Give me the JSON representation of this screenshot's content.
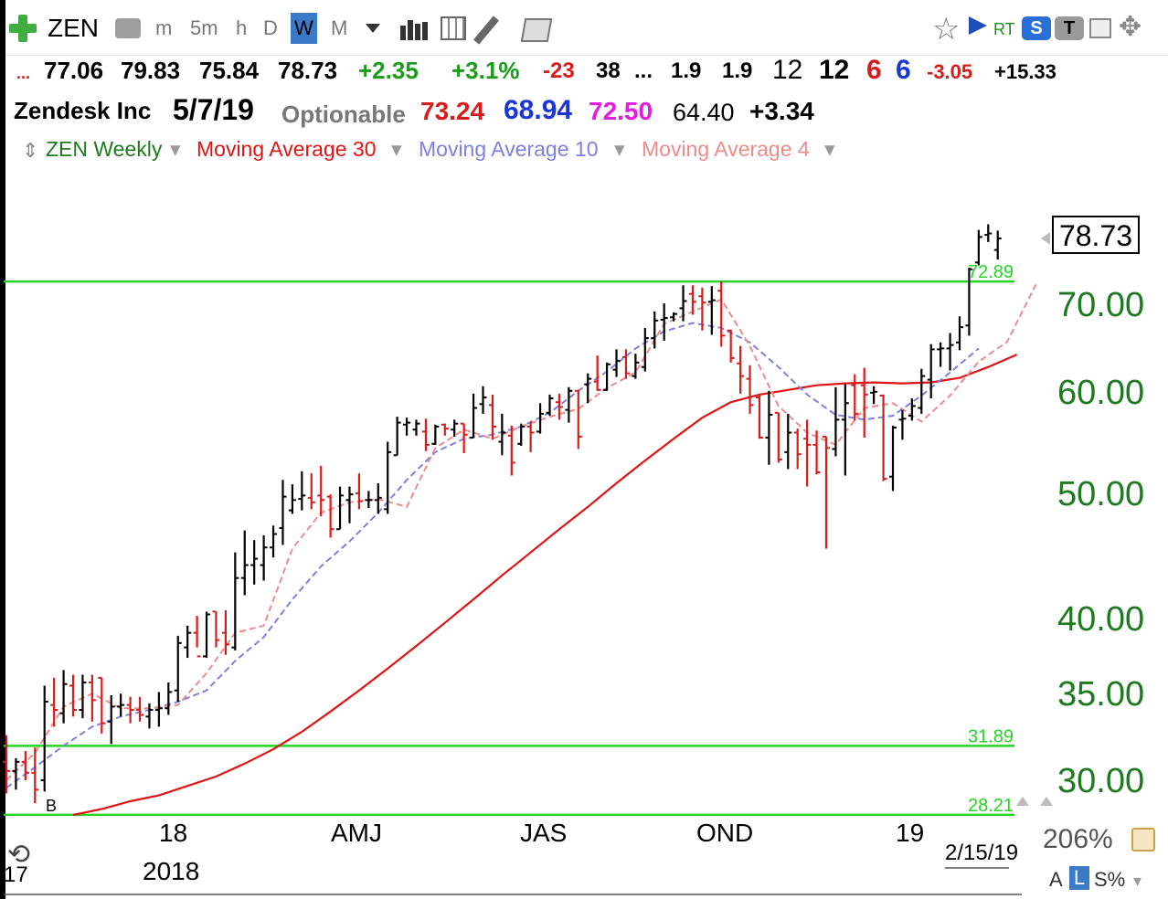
{
  "toolbar": {
    "symbol": "ZEN",
    "intervals": [
      "m",
      "5m",
      "h",
      "D",
      "W",
      "M"
    ],
    "active_interval": "W",
    "rt_label": "RT"
  },
  "quote": {
    "open": "77.06",
    "high": "79.83",
    "low": "75.84",
    "close": "78.73",
    "change": "+2.35",
    "change_pct": "+3.1%",
    "val1": "-23",
    "val2": "38",
    "dots": "...",
    "val3": "1.9",
    "val4": "1.9",
    "val5": "12",
    "val6": "12",
    "val7": "6",
    "val8": "6",
    "val9": "-3.05",
    "val10": "+15.33",
    "company": "Zendesk Inc",
    "date": "5/7/19",
    "optionable": "Optionable",
    "ma30": "73.24",
    "ma10": "68.94",
    "ma4": "72.50",
    "val11": "64.40",
    "val12": "+3.34"
  },
  "legend": {
    "main": "ZEN Weekly",
    "ma30": "Moving Average 30",
    "ma10": "Moving Average 10",
    "ma4": "Moving Average 4"
  },
  "colors": {
    "up": "#000000",
    "down": "#d81b1b",
    "ma30": "#e01414",
    "ma10": "#7f7fe0",
    "ma4": "#ea8c8c",
    "hline": "#25d425",
    "axis_text": "#1e7a1e"
  },
  "chart_data": {
    "type": "bar",
    "title": "ZEN Weekly",
    "scale": "log",
    "ylim": [
      28,
      82
    ],
    "y_ticks": [
      "30.00",
      "35.00",
      "40.00",
      "50.00",
      "60.00",
      "70.00"
    ],
    "x_labels": [
      "17",
      "18",
      "AMJ",
      "JAS",
      "OND",
      "19"
    ],
    "year_label": "2018",
    "last_date": "2/15/19",
    "last_price_label": "78.73",
    "percent_label": "206%",
    "footer_buttons": [
      "A",
      "L",
      "S%"
    ],
    "hlines": [
      {
        "value": 72.89,
        "label": "72.89"
      },
      {
        "value": 31.89,
        "label": "31.89"
      },
      {
        "value": 28.21,
        "label": "28.21"
      }
    ],
    "marker": "B",
    "bars": [
      {
        "o": 31.0,
        "h": 32.5,
        "l": 29.3,
        "c": 30.5
      },
      {
        "o": 30.5,
        "h": 31.2,
        "l": 29.5,
        "c": 31.0
      },
      {
        "o": 31.0,
        "h": 31.6,
        "l": 30.0,
        "c": 30.4
      },
      {
        "o": 30.4,
        "h": 31.8,
        "l": 28.8,
        "c": 29.5
      },
      {
        "o": 30.0,
        "h": 35.5,
        "l": 29.4,
        "c": 34.5
      },
      {
        "o": 34.3,
        "h": 36.0,
        "l": 33.0,
        "c": 34.0
      },
      {
        "o": 33.8,
        "h": 36.5,
        "l": 33.2,
        "c": 35.6
      },
      {
        "o": 35.5,
        "h": 36.2,
        "l": 33.6,
        "c": 34.0
      },
      {
        "o": 34.0,
        "h": 36.2,
        "l": 33.5,
        "c": 35.7
      },
      {
        "o": 35.7,
        "h": 36.2,
        "l": 33.3,
        "c": 34.6
      },
      {
        "o": 36.0,
        "h": 36.0,
        "l": 32.6,
        "c": 33.2
      },
      {
        "o": 33.3,
        "h": 34.9,
        "l": 32.0,
        "c": 34.2
      },
      {
        "o": 34.2,
        "h": 35.0,
        "l": 33.6,
        "c": 34.3
      },
      {
        "o": 34.3,
        "h": 34.8,
        "l": 33.2,
        "c": 34.0
      },
      {
        "o": 34.0,
        "h": 34.8,
        "l": 33.3,
        "c": 33.7
      },
      {
        "o": 33.6,
        "h": 34.4,
        "l": 32.9,
        "c": 34.0
      },
      {
        "o": 34.0,
        "h": 35.1,
        "l": 33.0,
        "c": 34.1
      },
      {
        "o": 34.1,
        "h": 35.7,
        "l": 33.7,
        "c": 35.1
      },
      {
        "o": 35.2,
        "h": 38.8,
        "l": 34.5,
        "c": 38.3
      },
      {
        "o": 38.0,
        "h": 39.5,
        "l": 37.3,
        "c": 39.0
      },
      {
        "o": 39.0,
        "h": 40.2,
        "l": 38.0,
        "c": 37.4
      },
      {
        "o": 37.4,
        "h": 40.5,
        "l": 37.3,
        "c": 40.3
      },
      {
        "o": 40.5,
        "h": 40.5,
        "l": 38.0,
        "c": 38.5
      },
      {
        "o": 39.0,
        "h": 40.6,
        "l": 37.5,
        "c": 38.2
      },
      {
        "o": 38.0,
        "h": 45.0,
        "l": 37.8,
        "c": 43.0
      },
      {
        "o": 43.0,
        "h": 46.8,
        "l": 41.7,
        "c": 44.0
      },
      {
        "o": 44.0,
        "h": 46.0,
        "l": 42.5,
        "c": 44.5
      },
      {
        "o": 44.0,
        "h": 46.4,
        "l": 42.8,
        "c": 45.4
      },
      {
        "o": 45.4,
        "h": 47.2,
        "l": 44.6,
        "c": 46.5
      },
      {
        "o": 47.0,
        "h": 51.2,
        "l": 45.6,
        "c": 49.7
      },
      {
        "o": 48.5,
        "h": 50.8,
        "l": 48.2,
        "c": 49.4
      },
      {
        "o": 49.5,
        "h": 52.0,
        "l": 48.5,
        "c": 49.8
      },
      {
        "o": 49.6,
        "h": 51.8,
        "l": 48.6,
        "c": 49.2
      },
      {
        "o": 49.8,
        "h": 52.5,
        "l": 48.0,
        "c": 49.4
      },
      {
        "o": 49.7,
        "h": 49.9,
        "l": 46.2,
        "c": 46.9
      },
      {
        "o": 46.9,
        "h": 50.6,
        "l": 46.9,
        "c": 49.8
      },
      {
        "o": 49.4,
        "h": 50.6,
        "l": 47.4,
        "c": 49.9
      },
      {
        "o": 50.0,
        "h": 51.8,
        "l": 48.6,
        "c": 49.3
      },
      {
        "o": 49.4,
        "h": 50.2,
        "l": 48.7,
        "c": 49.4
      },
      {
        "o": 49.4,
        "h": 50.9,
        "l": 48.2,
        "c": 49.6
      },
      {
        "o": 48.6,
        "h": 54.8,
        "l": 48.2,
        "c": 53.8
      },
      {
        "o": 53.5,
        "h": 57.3,
        "l": 53.5,
        "c": 56.7
      },
      {
        "o": 56.5,
        "h": 57.2,
        "l": 55.4,
        "c": 56.7
      },
      {
        "o": 56.0,
        "h": 57.0,
        "l": 55.4,
        "c": 56.6
      },
      {
        "o": 55.8,
        "h": 57.1,
        "l": 53.9,
        "c": 54.5
      },
      {
        "o": 54.6,
        "h": 56.5,
        "l": 54.5,
        "c": 56.3
      },
      {
        "o": 56.5,
        "h": 56.6,
        "l": 55.4,
        "c": 56.1
      },
      {
        "o": 56.0,
        "h": 57.0,
        "l": 55.3,
        "c": 56.6
      },
      {
        "o": 56.6,
        "h": 56.6,
        "l": 53.7,
        "c": 55.5
      },
      {
        "o": 55.2,
        "h": 59.7,
        "l": 55.2,
        "c": 58.2
      },
      {
        "o": 58.6,
        "h": 60.5,
        "l": 57.6,
        "c": 59.3
      },
      {
        "o": 58.5,
        "h": 59.6,
        "l": 55.0,
        "c": 56.3
      },
      {
        "o": 54.8,
        "h": 57.6,
        "l": 53.5,
        "c": 55.7
      },
      {
        "o": 55.4,
        "h": 56.4,
        "l": 51.6,
        "c": 52.8
      },
      {
        "o": 54.6,
        "h": 56.6,
        "l": 54.4,
        "c": 56.3
      },
      {
        "o": 56.3,
        "h": 56.8,
        "l": 53.8,
        "c": 55.7
      },
      {
        "o": 55.8,
        "h": 58.7,
        "l": 55.6,
        "c": 57.6
      },
      {
        "o": 57.7,
        "h": 59.6,
        "l": 57.4,
        "c": 59.2
      },
      {
        "o": 58.8,
        "h": 59.7,
        "l": 57.0,
        "c": 58.3
      },
      {
        "o": 58.0,
        "h": 60.4,
        "l": 56.7,
        "c": 60.0
      },
      {
        "o": 60.0,
        "h": 60.1,
        "l": 54.1,
        "c": 55.3
      },
      {
        "o": 60.7,
        "h": 61.9,
        "l": 58.7,
        "c": 61.3
      },
      {
        "o": 61.0,
        "h": 63.9,
        "l": 60.0,
        "c": 60.1
      },
      {
        "o": 60.1,
        "h": 63.1,
        "l": 60.0,
        "c": 62.9
      },
      {
        "o": 62.3,
        "h": 64.6,
        "l": 61.5,
        "c": 63.3
      },
      {
        "o": 63.7,
        "h": 64.6,
        "l": 61.3,
        "c": 61.9
      },
      {
        "o": 61.6,
        "h": 64.1,
        "l": 61.3,
        "c": 63.1
      },
      {
        "o": 62.6,
        "h": 67.1,
        "l": 62.1,
        "c": 65.9
      },
      {
        "o": 65.9,
        "h": 69.1,
        "l": 64.7,
        "c": 68.0
      },
      {
        "o": 68.1,
        "h": 70.1,
        "l": 65.6,
        "c": 68.3
      },
      {
        "o": 68.4,
        "h": 69.0,
        "l": 67.9,
        "c": 68.8
      },
      {
        "o": 69.5,
        "h": 72.4,
        "l": 67.9,
        "c": 70.4
      },
      {
        "o": 71.3,
        "h": 72.4,
        "l": 68.7,
        "c": 70.3
      },
      {
        "o": 71.0,
        "h": 72.1,
        "l": 66.8,
        "c": 70.2
      },
      {
        "o": 70.3,
        "h": 72.3,
        "l": 66.3,
        "c": 70.5
      },
      {
        "o": 71.7,
        "h": 72.9,
        "l": 64.9,
        "c": 66.2
      },
      {
        "o": 66.8,
        "h": 66.9,
        "l": 63.1,
        "c": 63.6
      },
      {
        "o": 63.0,
        "h": 65.0,
        "l": 59.7,
        "c": 61.6
      },
      {
        "o": 61.3,
        "h": 62.8,
        "l": 57.6,
        "c": 58.5
      },
      {
        "o": 59.3,
        "h": 59.7,
        "l": 55.1,
        "c": 55.2
      },
      {
        "o": 55.2,
        "h": 60.0,
        "l": 52.6,
        "c": 57.5
      },
      {
        "o": 57.7,
        "h": 57.7,
        "l": 52.8,
        "c": 53.1
      },
      {
        "o": 53.8,
        "h": 57.6,
        "l": 52.2,
        "c": 55.7
      },
      {
        "o": 55.7,
        "h": 56.1,
        "l": 52.2,
        "c": 53.6
      },
      {
        "o": 55.1,
        "h": 57.0,
        "l": 50.6,
        "c": 54.5
      },
      {
        "o": 54.5,
        "h": 55.9,
        "l": 51.7,
        "c": 51.9
      },
      {
        "o": 55.3,
        "h": 55.3,
        "l": 45.3,
        "c": 54.2
      },
      {
        "o": 54.1,
        "h": 60.4,
        "l": 53.4,
        "c": 57.0
      },
      {
        "o": 57.0,
        "h": 60.7,
        "l": 51.6,
        "c": 58.7
      },
      {
        "o": 60.6,
        "h": 61.8,
        "l": 56.9,
        "c": 57.6
      },
      {
        "o": 60.6,
        "h": 62.5,
        "l": 55.2,
        "c": 59.6
      },
      {
        "o": 59.8,
        "h": 60.5,
        "l": 58.6,
        "c": 59.9
      },
      {
        "o": 59.5,
        "h": 59.6,
        "l": 51.1,
        "c": 51.3
      },
      {
        "o": 51.5,
        "h": 56.4,
        "l": 50.2,
        "c": 56.2
      },
      {
        "o": 57.0,
        "h": 58.0,
        "l": 55.0,
        "c": 57.1
      },
      {
        "o": 57.4,
        "h": 59.2,
        "l": 56.9,
        "c": 58.4
      },
      {
        "o": 58.2,
        "h": 62.4,
        "l": 57.6,
        "c": 61.6
      },
      {
        "o": 61.2,
        "h": 65.2,
        "l": 59.2,
        "c": 64.6
      },
      {
        "o": 64.6,
        "h": 65.4,
        "l": 62.6,
        "c": 64.7
      },
      {
        "o": 64.7,
        "h": 66.5,
        "l": 62.2,
        "c": 65.1
      },
      {
        "o": 65.4,
        "h": 68.5,
        "l": 64.5,
        "c": 67.2
      },
      {
        "o": 67.4,
        "h": 74.7,
        "l": 66.2,
        "c": 74.5
      },
      {
        "o": 75.4,
        "h": 79.9,
        "l": 75.0,
        "c": 78.9
      },
      {
        "o": 79.2,
        "h": 80.7,
        "l": 78.2,
        "c": 79.4
      },
      {
        "o": 77.1,
        "h": 79.8,
        "l": 75.8,
        "c": 78.7
      }
    ],
    "ma30": [
      28.2,
      28.5,
      28.9,
      29.2,
      29.7,
      30.2,
      30.9,
      31.7,
      32.7,
      33.9,
      35.2,
      36.6,
      38.1,
      39.7,
      41.4,
      43.2,
      45.0,
      46.9,
      48.8,
      50.9,
      53.0,
      55.1,
      57.2,
      58.8,
      59.6,
      60.1,
      60.6,
      60.8,
      60.9,
      60.8,
      60.9,
      61.4,
      62.6,
      64.0
    ],
    "ma10": [
      29.6,
      30.7,
      31.9,
      33.0,
      33.6,
      34.0,
      34.5,
      35.2,
      37.1,
      38.7,
      41.4,
      43.9,
      45.9,
      48.3,
      51.2,
      53.8,
      55.1,
      55.5,
      56.3,
      57.7,
      60.0,
      62.1,
      64.7,
      66.7,
      67.7,
      67.1,
      65.4,
      62.6,
      59.6,
      57.5,
      57.0,
      57.4,
      59.5,
      62.0,
      64.7
    ],
    "ma4": [
      30.0,
      31.5,
      34.2,
      35.0,
      34.1,
      34.1,
      34.3,
      36.3,
      39.0,
      39.5,
      45.3,
      48.3,
      49.2,
      49.5,
      48.8,
      54.2,
      56.0,
      55.1,
      56.3,
      57.3,
      58.1,
      60.3,
      62.0,
      67.6,
      69.1,
      70.6,
      65.0,
      58.4,
      55.7,
      54.5,
      58.2,
      58.7,
      56.8,
      59.5,
      63.2,
      65.5,
      72.5
    ]
  }
}
